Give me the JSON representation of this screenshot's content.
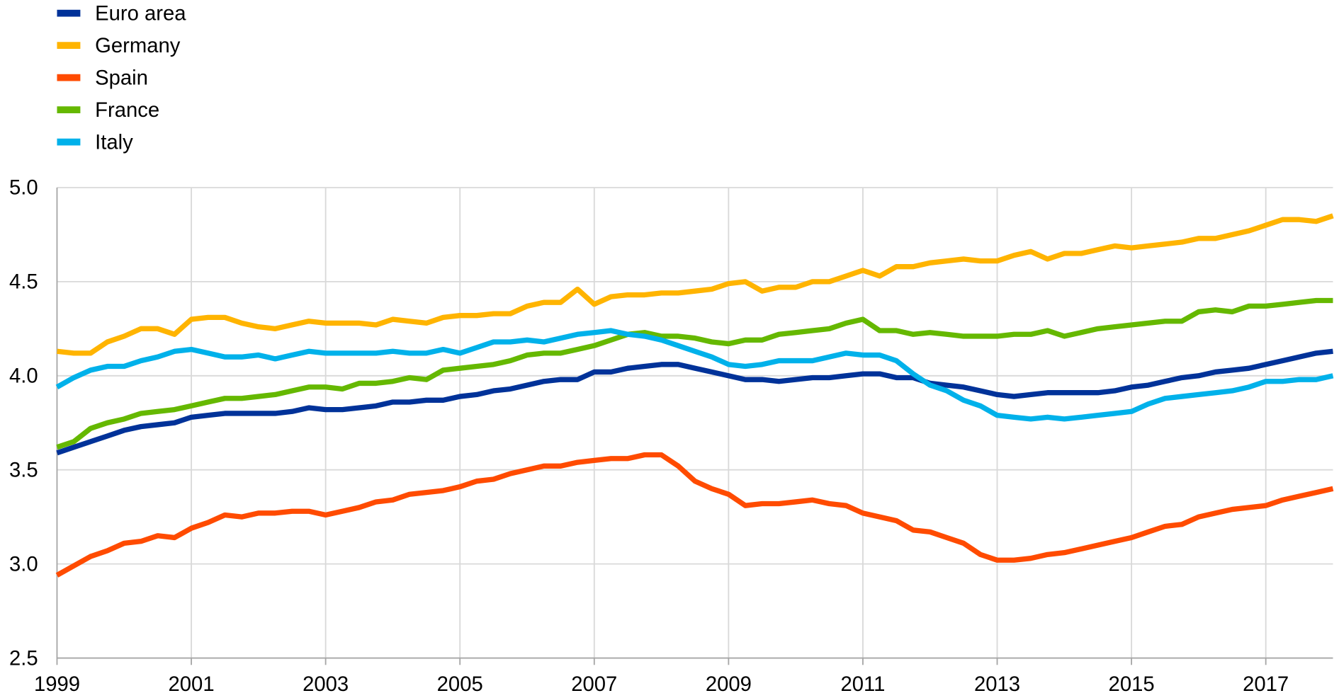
{
  "chart_data": {
    "type": "line",
    "title": "",
    "xlabel": "",
    "ylabel": "",
    "x_start": 1999,
    "x_step": 0.25,
    "xlim": [
      1999,
      2018
    ],
    "ylim": [
      2.5,
      5.0
    ],
    "yticks": [
      "2.5",
      "3.0",
      "3.5",
      "4.0",
      "4.5",
      "5.0"
    ],
    "ytick_values": [
      2.5,
      3.0,
      3.5,
      4.0,
      4.5,
      5.0
    ],
    "xticks": [
      "1999",
      "2001",
      "2003",
      "2005",
      "2007",
      "2009",
      "2011",
      "2013",
      "2015",
      "2017"
    ],
    "xtick_values": [
      1999,
      2001,
      2003,
      2005,
      2007,
      2009,
      2011,
      2013,
      2015,
      2017
    ],
    "grid": true,
    "legend_position": "top-left",
    "series": [
      {
        "name": "Euro area",
        "color": "#003299",
        "values": [
          3.59,
          3.62,
          3.65,
          3.68,
          3.71,
          3.73,
          3.74,
          3.75,
          3.78,
          3.79,
          3.8,
          3.8,
          3.8,
          3.8,
          3.81,
          3.83,
          3.82,
          3.82,
          3.83,
          3.84,
          3.86,
          3.86,
          3.87,
          3.87,
          3.89,
          3.9,
          3.92,
          3.93,
          3.95,
          3.97,
          3.98,
          3.98,
          4.02,
          4.02,
          4.04,
          4.05,
          4.06,
          4.06,
          4.04,
          4.02,
          4.0,
          3.98,
          3.98,
          3.97,
          3.98,
          3.99,
          3.99,
          4.0,
          4.01,
          4.01,
          3.99,
          3.99,
          3.96,
          3.95,
          3.94,
          3.92,
          3.9,
          3.89,
          3.9,
          3.91,
          3.91,
          3.91,
          3.91,
          3.92,
          3.94,
          3.95,
          3.97,
          3.99,
          4.0,
          4.02,
          4.03,
          4.04,
          4.06,
          4.08,
          4.1,
          4.12,
          4.13
        ]
      },
      {
        "name": "Germany",
        "color": "#FFB400",
        "values": [
          4.13,
          4.12,
          4.12,
          4.18,
          4.21,
          4.25,
          4.25,
          4.22,
          4.3,
          4.31,
          4.31,
          4.28,
          4.26,
          4.25,
          4.27,
          4.29,
          4.28,
          4.28,
          4.28,
          4.27,
          4.3,
          4.29,
          4.28,
          4.31,
          4.32,
          4.32,
          4.33,
          4.33,
          4.37,
          4.39,
          4.39,
          4.46,
          4.38,
          4.42,
          4.43,
          4.43,
          4.44,
          4.44,
          4.45,
          4.46,
          4.49,
          4.5,
          4.45,
          4.47,
          4.47,
          4.5,
          4.5,
          4.53,
          4.56,
          4.53,
          4.58,
          4.58,
          4.6,
          4.61,
          4.62,
          4.61,
          4.61,
          4.64,
          4.66,
          4.62,
          4.65,
          4.65,
          4.67,
          4.69,
          4.68,
          4.69,
          4.7,
          4.71,
          4.73,
          4.73,
          4.75,
          4.77,
          4.8,
          4.83,
          4.83,
          4.82,
          4.85
        ]
      },
      {
        "name": "Spain",
        "color": "#FF4B00",
        "values": [
          2.94,
          2.99,
          3.04,
          3.07,
          3.11,
          3.12,
          3.15,
          3.14,
          3.19,
          3.22,
          3.26,
          3.25,
          3.27,
          3.27,
          3.28,
          3.28,
          3.26,
          3.28,
          3.3,
          3.33,
          3.34,
          3.37,
          3.38,
          3.39,
          3.41,
          3.44,
          3.45,
          3.48,
          3.5,
          3.52,
          3.52,
          3.54,
          3.55,
          3.56,
          3.56,
          3.58,
          3.58,
          3.52,
          3.44,
          3.4,
          3.37,
          3.31,
          3.32,
          3.32,
          3.33,
          3.34,
          3.32,
          3.31,
          3.27,
          3.25,
          3.23,
          3.18,
          3.17,
          3.14,
          3.11,
          3.05,
          3.02,
          3.02,
          3.03,
          3.05,
          3.06,
          3.08,
          3.1,
          3.12,
          3.14,
          3.17,
          3.2,
          3.21,
          3.25,
          3.27,
          3.29,
          3.3,
          3.31,
          3.34,
          3.36,
          3.38,
          3.4
        ]
      },
      {
        "name": "France",
        "color": "#65B800",
        "values": [
          3.62,
          3.65,
          3.72,
          3.75,
          3.77,
          3.8,
          3.81,
          3.82,
          3.84,
          3.86,
          3.88,
          3.88,
          3.89,
          3.9,
          3.92,
          3.94,
          3.94,
          3.93,
          3.96,
          3.96,
          3.97,
          3.99,
          3.98,
          4.03,
          4.04,
          4.05,
          4.06,
          4.08,
          4.11,
          4.12,
          4.12,
          4.14,
          4.16,
          4.19,
          4.22,
          4.23,
          4.21,
          4.21,
          4.2,
          4.18,
          4.17,
          4.19,
          4.19,
          4.22,
          4.23,
          4.24,
          4.25,
          4.28,
          4.3,
          4.24,
          4.24,
          4.22,
          4.23,
          4.22,
          4.21,
          4.21,
          4.21,
          4.22,
          4.22,
          4.24,
          4.21,
          4.23,
          4.25,
          4.26,
          4.27,
          4.28,
          4.29,
          4.29,
          4.34,
          4.35,
          4.34,
          4.37,
          4.37,
          4.38,
          4.39,
          4.4,
          4.4
        ]
      },
      {
        "name": "Italy",
        "color": "#00B1EA",
        "values": [
          3.94,
          3.99,
          4.03,
          4.05,
          4.05,
          4.08,
          4.1,
          4.13,
          4.14,
          4.12,
          4.1,
          4.1,
          4.11,
          4.09,
          4.11,
          4.13,
          4.12,
          4.12,
          4.12,
          4.12,
          4.13,
          4.12,
          4.12,
          4.14,
          4.12,
          4.15,
          4.18,
          4.18,
          4.19,
          4.18,
          4.2,
          4.22,
          4.23,
          4.24,
          4.22,
          4.21,
          4.19,
          4.16,
          4.13,
          4.1,
          4.06,
          4.05,
          4.06,
          4.08,
          4.08,
          4.08,
          4.1,
          4.12,
          4.11,
          4.11,
          4.08,
          4.01,
          3.95,
          3.92,
          3.87,
          3.84,
          3.79,
          3.78,
          3.77,
          3.78,
          3.77,
          3.78,
          3.79,
          3.8,
          3.81,
          3.85,
          3.88,
          3.89,
          3.9,
          3.91,
          3.92,
          3.94,
          3.97,
          3.97,
          3.98,
          3.98,
          4.0
        ]
      }
    ]
  }
}
